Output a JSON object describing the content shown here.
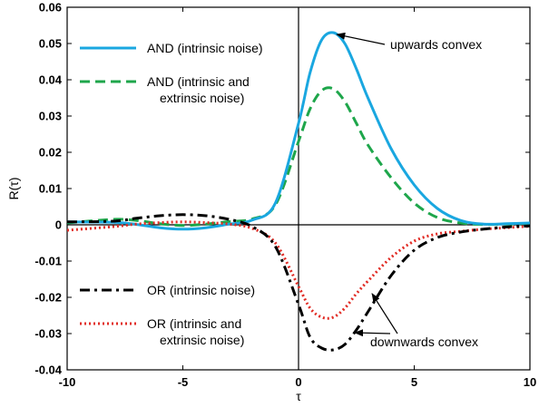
{
  "chart_data": {
    "type": "line",
    "xlabel": "τ",
    "ylabel": "R(τ)",
    "xlim": [
      -10,
      10
    ],
    "ylim": [
      -0.04,
      0.06
    ],
    "grid": false,
    "legend_placement": "left (upper for AND series, lower for OR series)",
    "x_ticks": [
      "-10",
      "-5",
      "0",
      "5",
      "10"
    ],
    "y_ticks": [
      "-0.04",
      "-0.03",
      "-0.02",
      "-0.01",
      "0",
      "0.01",
      "0.02",
      "0.03",
      "0.04",
      "0.05",
      "0.06"
    ],
    "series": [
      {
        "name": "AND (intrinsic noise)",
        "color": "#1aa7e0",
        "dash": "solid",
        "x": [
          -10,
          -8,
          -7,
          -6,
          -5,
          -4,
          -3,
          -2,
          -1,
          0,
          0.5,
          1,
          1.5,
          2,
          2.5,
          3,
          4,
          5,
          6,
          7,
          8,
          9,
          10
        ],
        "y": [
          0.0008,
          0.0007,
          0.0001,
          -0.0008,
          -0.0012,
          -0.0008,
          0.0002,
          0.0013,
          0.006,
          0.028,
          0.042,
          0.051,
          0.053,
          0.05,
          0.043,
          0.035,
          0.021,
          0.011,
          0.0045,
          0.0012,
          0.0002,
          0.0003,
          0.0005
        ]
      },
      {
        "name": "AND (intrinsic and extrinsic noise)",
        "color": "#1ea64b",
        "dash": "dashed",
        "x": [
          -10,
          -8,
          -7,
          -6,
          -5,
          -4,
          -3,
          -2,
          -1,
          0,
          0.5,
          1,
          1.5,
          2,
          2.5,
          3,
          4,
          5,
          6,
          7,
          8,
          9,
          10
        ],
        "y": [
          0.0005,
          0.0015,
          0.0012,
          0.0003,
          -0.0002,
          0.0002,
          0.0009,
          0.0016,
          0.0055,
          0.023,
          0.032,
          0.037,
          0.0375,
          0.034,
          0.028,
          0.022,
          0.013,
          0.006,
          0.002,
          0.0005,
          0.0001,
          0.0002,
          0.0004
        ]
      },
      {
        "name": "OR (intrinsic noise)",
        "color": "#000000",
        "dash": "dashdot",
        "x": [
          -10,
          -8,
          -7,
          -6,
          -5,
          -4,
          -3,
          -2,
          -1,
          0,
          0.5,
          1,
          1.5,
          2,
          2.5,
          3,
          4,
          5,
          6,
          7,
          8,
          9,
          10
        ],
        "y": [
          0.0008,
          0.001,
          0.0018,
          0.0025,
          0.0028,
          0.0025,
          0.0015,
          -0.0005,
          -0.006,
          -0.022,
          -0.031,
          -0.034,
          -0.0345,
          -0.033,
          -0.029,
          -0.024,
          -0.014,
          -0.007,
          -0.0035,
          -0.002,
          -0.0012,
          -0.0006,
          -0.0003
        ]
      },
      {
        "name": "OR (intrinsic and extrinsic noise)",
        "color": "#e12b24",
        "dash": "dotted",
        "x": [
          -10,
          -8,
          -7,
          -6,
          -5,
          -4,
          -3,
          -2,
          -1,
          0,
          0.5,
          1,
          1.5,
          2,
          2.5,
          3,
          4,
          5,
          6,
          7,
          8,
          9,
          10
        ],
        "y": [
          -0.0015,
          -0.0005,
          0.0002,
          0.0006,
          0.0008,
          0.0006,
          0.0002,
          -0.001,
          -0.005,
          -0.017,
          -0.023,
          -0.0255,
          -0.0255,
          -0.023,
          -0.019,
          -0.0155,
          -0.009,
          -0.0045,
          -0.0025,
          -0.0018,
          -0.0012,
          -0.0008,
          -0.0004
        ]
      }
    ],
    "annotations": [
      {
        "text": "upwards convex",
        "arrow_to": [
          1.5,
          0.053
        ]
      },
      {
        "text": "downwards convex",
        "arrow_to": [
          [
            3.1,
            -0.0185
          ],
          [
            2.2,
            -0.0295
          ]
        ]
      }
    ]
  }
}
